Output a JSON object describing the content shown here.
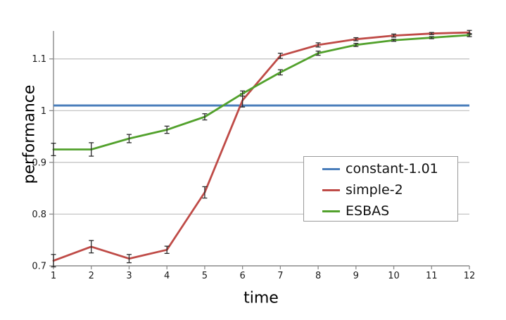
{
  "chart_data": {
    "type": "line",
    "title": "",
    "xlabel": "time",
    "ylabel": "performance",
    "x": [
      1,
      2,
      3,
      4,
      5,
      6,
      7,
      8,
      9,
      10,
      11,
      12
    ],
    "xlim": [
      1,
      12
    ],
    "ylim": [
      0.7,
      1.154
    ],
    "xticks": [
      1,
      2,
      3,
      4,
      5,
      6,
      7,
      8,
      9,
      10,
      11,
      12
    ],
    "xtick_labels": [
      "1",
      "2",
      "3",
      "4",
      "5",
      "6",
      "7",
      "8",
      "9",
      "10",
      "11",
      "12"
    ],
    "yticks": [
      0.7,
      0.8,
      0.9,
      1.0,
      1.1
    ],
    "ytick_labels": [
      "0.7",
      "0.8",
      "0.9",
      "1",
      "1.1"
    ],
    "grid": "horizontal",
    "legend_position": "center-right",
    "series": [
      {
        "name": "constant-1.01",
        "type": "hline",
        "color": "#4a7ebb",
        "value": 1.01
      },
      {
        "name": "simple-2",
        "type": "line-errorbars",
        "color": "#bf4b47",
        "values": [
          0.71,
          0.737,
          0.714,
          0.731,
          0.842,
          1.02,
          1.106,
          1.127,
          1.138,
          1.145,
          1.149,
          1.151
        ],
        "errors": [
          0.012,
          0.012,
          0.008,
          0.007,
          0.011,
          0.013,
          0.005,
          0.004,
          0.003,
          0.003,
          0.002,
          0.004
        ]
      },
      {
        "name": "ESBAS",
        "type": "line-errorbars",
        "color": "#52a12c",
        "values": [
          0.925,
          0.925,
          0.946,
          0.963,
          0.988,
          1.033,
          1.074,
          1.111,
          1.127,
          1.136,
          1.141,
          1.146
        ],
        "errors": [
          0.012,
          0.013,
          0.008,
          0.007,
          0.006,
          0.005,
          0.005,
          0.004,
          0.003,
          0.002,
          0.002,
          0.003
        ]
      }
    ],
    "colors": {
      "grid": "#bfbfbf",
      "axis": "#8a8a8a",
      "error_bar": "#2a2a2a",
      "tick_text": "#1a1a1a"
    }
  }
}
